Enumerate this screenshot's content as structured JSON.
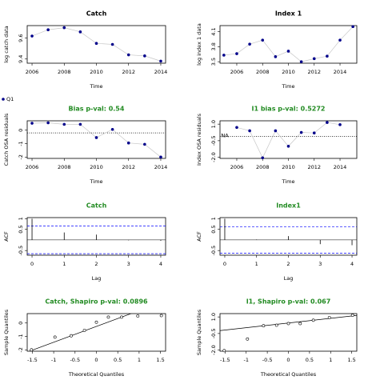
{
  "chart_data": [
    {
      "type": "line",
      "title": "Catch",
      "title_color": "#000000",
      "legend": "Q1",
      "xlabel": "Time",
      "ylabel": "log catch data",
      "x": [
        2006,
        2007,
        2008,
        2009,
        2010,
        2011,
        2012,
        2013,
        2014
      ],
      "values": [
        9.62,
        9.68,
        9.7,
        9.66,
        9.55,
        9.54,
        9.44,
        9.43,
        9.38
      ],
      "xlim": [
        2005.7,
        2014.3
      ],
      "ylim": [
        9.36,
        9.72
      ],
      "xticks": [
        2006,
        2008,
        2010,
        2012,
        2014
      ],
      "yticks": [
        9.4,
        9.6
      ],
      "color": "#00008b"
    },
    {
      "type": "line",
      "title": "Index 1",
      "title_color": "#000000",
      "xlabel": "Time",
      "ylabel": "log index 1 data",
      "x": [
        2005,
        2006,
        2007,
        2008,
        2009,
        2010,
        2011,
        2012,
        2013,
        2014,
        2015
      ],
      "values": [
        3.63,
        3.66,
        3.85,
        3.93,
        3.6,
        3.71,
        3.5,
        3.56,
        3.61,
        3.93,
        4.2
      ],
      "xlim": [
        2004.7,
        2015.3
      ],
      "ylim": [
        3.47,
        4.22
      ],
      "xticks": [
        2006,
        2008,
        2010,
        2012,
        2014
      ],
      "yticks": [
        3.5,
        3.8,
        4.1
      ],
      "color": "#00008b"
    },
    {
      "type": "line",
      "title": "Bias p-val: 0.54",
      "title_color": "#228b22",
      "xlabel": "Time",
      "ylabel": "Catch OSA residuals",
      "x": [
        2006,
        2007,
        2008,
        2009,
        2010,
        2011,
        2012,
        2013,
        2014
      ],
      "values": [
        0.52,
        0.55,
        0.44,
        0.44,
        -0.55,
        0.06,
        -0.95,
        -1.05,
        -2.0
      ],
      "xlim": [
        2005.7,
        2014.3
      ],
      "ylim": [
        -2.1,
        0.7
      ],
      "xticks": [
        2006,
        2008,
        2010,
        2012,
        2014
      ],
      "yticks": [
        -2,
        -1,
        0
      ],
      "hline": -0.2,
      "color": "#00008b"
    },
    {
      "type": "line",
      "title": "I1 bias p-val: 0.5272",
      "title_color": "#228b22",
      "xlabel": "Time",
      "ylabel": "Index OSA residuals",
      "na_label": "NA",
      "x": [
        2005,
        2006,
        2007,
        2008,
        2009,
        2010,
        2011,
        2012,
        2013,
        2014,
        2015
      ],
      "values": [
        null,
        0.7,
        0.4,
        -2.05,
        0.4,
        -1.0,
        0.25,
        0.2,
        1.15,
        0.95,
        null
      ],
      "xlim": [
        2004.7,
        2015.3
      ],
      "ylim": [
        -2.1,
        1.3
      ],
      "xticks": [
        2006,
        2008,
        2010,
        2012,
        2014
      ],
      "yticks": [
        {
          "value": -2,
          "label": "-2.0"
        },
        -0.5,
        {
          "value": 1,
          "label": "1.0"
        }
      ],
      "hline": -0.1,
      "color": "#00008b"
    },
    {
      "type": "acf",
      "title": "Catch",
      "title_color": "#228b22",
      "xlabel": "Lag",
      "ylabel": "ACF",
      "x": [
        0,
        1,
        2,
        3,
        4
      ],
      "values": [
        1,
        0.35,
        0.25,
        -0.02,
        -0.04
      ],
      "ci": [
        -0.65,
        0.65
      ],
      "xlim": [
        -0.15,
        4.15
      ],
      "ylim": [
        -0.72,
        1.05
      ],
      "xticks": [
        0,
        1,
        2,
        3,
        4
      ],
      "yticks": [
        -0.5,
        0.5,
        1
      ]
    },
    {
      "type": "acf",
      "title": "Index1",
      "title_color": "#228b22",
      "xlabel": "Lag",
      "ylabel": "ACF",
      "x": [
        0,
        1,
        2,
        3,
        4
      ],
      "values": [
        1,
        0.02,
        0.18,
        -0.2,
        -0.25
      ],
      "ci": [
        -0.62,
        0.62
      ],
      "xlim": [
        -0.15,
        4.15
      ],
      "ylim": [
        -0.72,
        1.05
      ],
      "xticks": [
        0,
        1,
        2,
        3,
        4
      ],
      "yticks": [
        -0.5,
        0.5,
        1
      ]
    },
    {
      "type": "qq",
      "title": "Catch, Shapiro p-val: 0.0896",
      "title_color": "#228b22",
      "xlabel": "Theoretical Quantiles",
      "ylabel": "Sample Quantiles",
      "x": [
        -1.52,
        -0.97,
        -0.59,
        -0.28,
        0,
        0.28,
        0.59,
        0.97,
        1.52
      ],
      "values": [
        -2.0,
        -1.05,
        -0.95,
        -0.55,
        0.06,
        0.44,
        0.44,
        0.52,
        0.55
      ],
      "xlim": [
        -1.62,
        1.62
      ],
      "ylim": [
        -2.1,
        0.7
      ],
      "xticks": [
        -1.5,
        -1,
        -0.5,
        0,
        0.5,
        1,
        1.5
      ],
      "yticks": [
        -2,
        -1,
        0
      ]
    },
    {
      "type": "qq",
      "title": "I1, Shapiro p-val: 0.067",
      "title_color": "#228b22",
      "xlabel": "Theoretical Quantiles",
      "ylabel": "Sample Quantiles",
      "x": [
        -1.52,
        -0.97,
        -0.59,
        -0.28,
        0,
        0.28,
        0.59,
        0.97,
        1.52
      ],
      "values": [
        -2.05,
        -1.0,
        0.2,
        0.25,
        0.4,
        0.4,
        0.7,
        0.95,
        1.15
      ],
      "xlim": [
        -1.62,
        1.62
      ],
      "ylim": [
        -2.1,
        1.3
      ],
      "xticks": [
        -1.5,
        -1,
        -0.5,
        0,
        0.5,
        1,
        1.5
      ],
      "yticks": [
        {
          "value": -2,
          "label": "-2.0"
        },
        -0.5,
        {
          "value": 1,
          "label": "1.0"
        }
      ]
    }
  ]
}
